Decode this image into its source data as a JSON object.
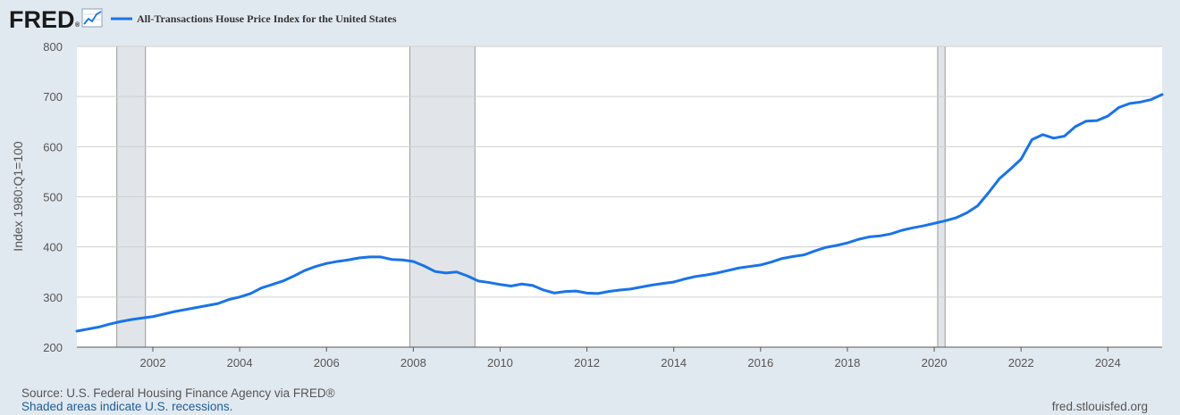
{
  "header": {
    "logo": "FRED",
    "logo_registered": "®",
    "logo_icon": "chart-line-icon"
  },
  "chart_data": {
    "type": "line",
    "title": "",
    "xlabel": "",
    "ylabel": "Index 1980:Q1=100",
    "ylim": [
      200,
      800
    ],
    "xlim": [
      2000.25,
      2025.25
    ],
    "grid": true,
    "legend_placement": "top-left",
    "y_ticks": [
      "200",
      "300",
      "400",
      "500",
      "600",
      "700",
      "800"
    ],
    "x_ticks": [
      "2002",
      "2004",
      "2006",
      "2008",
      "2010",
      "2012",
      "2014",
      "2016",
      "2018",
      "2020",
      "2022",
      "2024"
    ],
    "recessions": [
      [
        2001.17,
        2001.83
      ],
      [
        2007.92,
        2009.42
      ],
      [
        2020.08,
        2020.25
      ]
    ],
    "series": [
      {
        "name": "All-Transactions House Price Index for the United States",
        "color": "#1a73e8",
        "points": [
          [
            "2000.25",
            232
          ],
          [
            "2000.5",
            236
          ],
          [
            "2000.75",
            240
          ],
          [
            "2001.0",
            246
          ],
          [
            "2001.25",
            251
          ],
          [
            "2001.5",
            255
          ],
          [
            "2001.75",
            258
          ],
          [
            "2002.0",
            261
          ],
          [
            "2002.25",
            266
          ],
          [
            "2002.5",
            271
          ],
          [
            "2002.75",
            275
          ],
          [
            "2003.0",
            279
          ],
          [
            "2003.25",
            283
          ],
          [
            "2003.5",
            287
          ],
          [
            "2003.75",
            295
          ],
          [
            "2004.0",
            300
          ],
          [
            "2004.25",
            307
          ],
          [
            "2004.5",
            318
          ],
          [
            "2004.75",
            325
          ],
          [
            "2005.0",
            332
          ],
          [
            "2005.25",
            342
          ],
          [
            "2005.5",
            353
          ],
          [
            "2005.75",
            361
          ],
          [
            "2006.0",
            367
          ],
          [
            "2006.25",
            371
          ],
          [
            "2006.5",
            374
          ],
          [
            "2006.75",
            378
          ],
          [
            "2007.0",
            380
          ],
          [
            "2007.25",
            380
          ],
          [
            "2007.5",
            375
          ],
          [
            "2007.75",
            374
          ],
          [
            "2008.0",
            371
          ],
          [
            "2008.25",
            362
          ],
          [
            "2008.5",
            351
          ],
          [
            "2008.75",
            348
          ],
          [
            "2009.0",
            350
          ],
          [
            "2009.25",
            342
          ],
          [
            "2009.5",
            332
          ],
          [
            "2009.75",
            329
          ],
          [
            "2010.0",
            325
          ],
          [
            "2010.25",
            322
          ],
          [
            "2010.5",
            326
          ],
          [
            "2010.75",
            323
          ],
          [
            "2011.0",
            314
          ],
          [
            "2011.25",
            308
          ],
          [
            "2011.5",
            311
          ],
          [
            "2011.75",
            312
          ],
          [
            "2012.0",
            308
          ],
          [
            "2012.25",
            307
          ],
          [
            "2012.5",
            311
          ],
          [
            "2012.75",
            314
          ],
          [
            "2013.0",
            316
          ],
          [
            "2013.25",
            320
          ],
          [
            "2013.5",
            324
          ],
          [
            "2013.75",
            327
          ],
          [
            "2014.0",
            330
          ],
          [
            "2014.25",
            336
          ],
          [
            "2014.5",
            341
          ],
          [
            "2014.75",
            344
          ],
          [
            "2015.0",
            348
          ],
          [
            "2015.25",
            353
          ],
          [
            "2015.5",
            358
          ],
          [
            "2015.75",
            361
          ],
          [
            "2016.0",
            364
          ],
          [
            "2016.25",
            370
          ],
          [
            "2016.5",
            377
          ],
          [
            "2016.75",
            381
          ],
          [
            "2017.0",
            384
          ],
          [
            "2017.25",
            392
          ],
          [
            "2017.5",
            399
          ],
          [
            "2017.75",
            403
          ],
          [
            "2018.0",
            408
          ],
          [
            "2018.25",
            415
          ],
          [
            "2018.5",
            420
          ],
          [
            "2018.75",
            422
          ],
          [
            "2019.0",
            426
          ],
          [
            "2019.25",
            433
          ],
          [
            "2019.5",
            438
          ],
          [
            "2019.75",
            442
          ],
          [
            "2020.0",
            447
          ],
          [
            "2020.25",
            452
          ],
          [
            "2020.5",
            458
          ],
          [
            "2020.75",
            468
          ],
          [
            "2021.0",
            482
          ],
          [
            "2021.25",
            508
          ],
          [
            "2021.5",
            536
          ],
          [
            "2021.75",
            555
          ],
          [
            "2022.0",
            575
          ],
          [
            "2022.25",
            614
          ],
          [
            "2022.5",
            624
          ],
          [
            "2022.75",
            617
          ],
          [
            "2023.0",
            621
          ],
          [
            "2023.25",
            640
          ],
          [
            "2023.5",
            651
          ],
          [
            "2023.75",
            652
          ],
          [
            "2024.0",
            661
          ],
          [
            "2024.25",
            678
          ],
          [
            "2024.5",
            686
          ],
          [
            "2024.75",
            689
          ],
          [
            "2025.0",
            694
          ],
          [
            "2025.25",
            704
          ]
        ]
      }
    ]
  },
  "footer": {
    "source": "Source: U.S. Federal Housing Finance Agency via FRED®",
    "recession_note": "Shaded areas indicate U.S. recessions.",
    "site": "fred.stlouisfed.org"
  }
}
